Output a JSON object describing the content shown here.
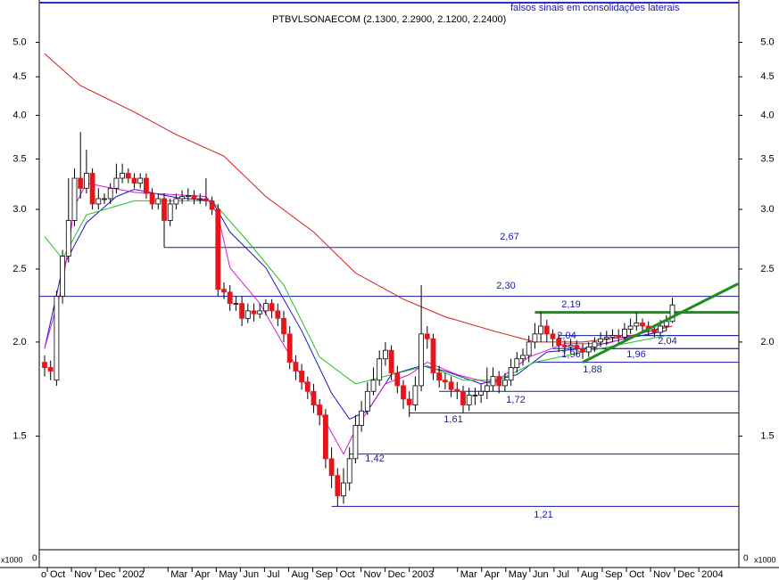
{
  "chart_data": {
    "type": "candlestick",
    "title": "PTBVLSONAECOM (2.1300, 2.2900, 2.1200, 2.2400)",
    "annotation": "falsos sinais em consolidações laterais",
    "log_scale": true,
    "ylim": [
      1.06,
      5.69
    ],
    "yticks": [
      1.5,
      {
        "value": 2,
        "label": "2.0"
      },
      2.5,
      {
        "value": 3,
        "label": "3.0"
      },
      3.5,
      {
        "value": 4,
        "label": "4.0"
      },
      4.5,
      {
        "value": 5,
        "label": "5.0"
      }
    ],
    "categories": [
      "o",
      "Oct",
      "Nov",
      "Dec",
      "2002",
      null,
      "Mar",
      "Apr",
      "May",
      "Jun",
      "Jul",
      "Aug",
      "Sep",
      "Oct",
      "Nov",
      "Dec",
      "2003",
      null,
      "Mar",
      "Apr",
      "May",
      "Jun",
      "Jul",
      "Aug",
      "Sep",
      "Oct",
      "Nov",
      "Dec",
      "2004"
    ],
    "up_color": "#ffffff",
    "down_color": "#e8141c",
    "ohlc": [
      [
        1.88,
        1.92,
        1.8,
        1.85
      ],
      [
        1.85,
        1.89,
        1.78,
        1.83
      ],
      [
        1.78,
        2.34,
        1.75,
        2.3
      ],
      [
        2.3,
        2.65,
        2.25,
        2.6
      ],
      [
        2.6,
        3.3,
        2.55,
        2.9
      ],
      [
        2.9,
        3.4,
        2.85,
        3.3
      ],
      [
        3.3,
        3.8,
        3.1,
        3.2
      ],
      [
        3.2,
        3.6,
        3.15,
        3.35
      ],
      [
        3.35,
        3.4,
        3.0,
        3.05
      ],
      [
        3.05,
        3.2,
        3.0,
        3.1
      ],
      [
        3.1,
        3.15,
        3.05,
        3.1
      ],
      [
        3.1,
        3.25,
        3.05,
        3.2
      ],
      [
        3.2,
        3.45,
        3.15,
        3.3
      ],
      [
        3.3,
        3.45,
        3.25,
        3.35
      ],
      [
        3.35,
        3.4,
        3.25,
        3.3
      ],
      [
        3.3,
        3.35,
        3.2,
        3.25
      ],
      [
        3.25,
        3.35,
        3.2,
        3.3
      ],
      [
        3.3,
        3.35,
        3.1,
        3.15
      ],
      [
        3.15,
        3.2,
        3.0,
        3.05
      ],
      [
        3.05,
        3.15,
        3.0,
        3.1
      ],
      [
        3.1,
        3.15,
        2.67,
        2.9
      ],
      [
        2.9,
        3.1,
        2.85,
        3.05
      ],
      [
        3.05,
        3.15,
        3.0,
        3.1
      ],
      [
        3.1,
        3.18,
        3.05,
        3.12
      ],
      [
        3.12,
        3.2,
        3.08,
        3.13
      ],
      [
        3.13,
        3.18,
        3.05,
        3.1
      ],
      [
        3.1,
        3.15,
        3.05,
        3.1
      ],
      [
        3.1,
        3.3,
        3.03,
        3.08
      ],
      [
        3.08,
        3.12,
        2.95,
        3.0
      ],
      [
        3.0,
        3.05,
        2.3,
        2.35
      ],
      [
        2.35,
        2.4,
        2.28,
        2.33
      ],
      [
        2.33,
        2.38,
        2.2,
        2.25
      ],
      [
        2.25,
        2.3,
        2.2,
        2.25
      ],
      [
        2.25,
        2.3,
        2.1,
        2.15
      ],
      [
        2.15,
        2.25,
        2.12,
        2.2
      ],
      [
        2.2,
        2.25,
        2.13,
        2.18
      ],
      [
        2.18,
        2.25,
        2.15,
        2.2
      ],
      [
        2.2,
        2.28,
        2.17,
        2.25
      ],
      [
        2.25,
        2.28,
        2.15,
        2.2
      ],
      [
        2.2,
        2.25,
        2.1,
        2.15
      ],
      [
        2.15,
        2.2,
        2.0,
        2.05
      ],
      [
        2.05,
        2.1,
        1.84,
        1.88
      ],
      [
        1.88,
        1.92,
        1.78,
        1.83
      ],
      [
        1.83,
        1.87,
        1.73,
        1.77
      ],
      [
        1.77,
        1.8,
        1.68,
        1.72
      ],
      [
        1.72,
        1.76,
        1.61,
        1.65
      ],
      [
        1.65,
        1.68,
        1.55,
        1.6
      ],
      [
        1.6,
        1.63,
        1.36,
        1.4
      ],
      [
        1.4,
        1.45,
        1.28,
        1.33
      ],
      [
        1.33,
        1.36,
        1.21,
        1.25
      ],
      [
        1.25,
        1.36,
        1.22,
        1.3
      ],
      [
        1.3,
        1.45,
        1.27,
        1.4
      ],
      [
        1.4,
        1.6,
        1.38,
        1.55
      ],
      [
        1.55,
        1.67,
        1.52,
        1.62
      ],
      [
        1.62,
        1.77,
        1.6,
        1.72
      ],
      [
        1.72,
        1.85,
        1.7,
        1.78
      ],
      [
        1.78,
        1.95,
        1.75,
        1.9
      ],
      [
        1.9,
        2.0,
        1.86,
        1.95
      ],
      [
        1.95,
        1.98,
        1.78,
        1.82
      ],
      [
        1.82,
        1.86,
        1.71,
        1.75
      ],
      [
        1.75,
        1.78,
        1.63,
        1.68
      ],
      [
        1.68,
        1.72,
        1.59,
        1.65
      ],
      [
        1.65,
        1.8,
        1.62,
        1.75
      ],
      [
        1.75,
        2.38,
        1.72,
        2.05
      ],
      [
        2.05,
        2.1,
        1.96,
        2.02
      ],
      [
        2.02,
        2.05,
        1.78,
        1.82
      ],
      [
        1.82,
        1.86,
        1.74,
        1.78
      ],
      [
        1.78,
        1.82,
        1.73,
        1.77
      ],
      [
        1.77,
        1.8,
        1.69,
        1.73
      ],
      [
        1.73,
        1.77,
        1.68,
        1.72
      ],
      [
        1.72,
        1.75,
        1.61,
        1.65
      ],
      [
        1.65,
        1.74,
        1.62,
        1.7
      ],
      [
        1.7,
        1.74,
        1.65,
        1.7
      ],
      [
        1.7,
        1.76,
        1.66,
        1.72
      ],
      [
        1.72,
        1.85,
        1.68,
        1.75
      ],
      [
        1.75,
        1.85,
        1.72,
        1.8
      ],
      [
        1.8,
        1.83,
        1.71,
        1.75
      ],
      [
        1.75,
        1.82,
        1.72,
        1.78
      ],
      [
        1.78,
        1.9,
        1.75,
        1.85
      ],
      [
        1.85,
        1.94,
        1.82,
        1.9
      ],
      [
        1.9,
        1.96,
        1.86,
        1.92
      ],
      [
        1.92,
        2.04,
        1.88,
        2.0
      ],
      [
        2.0,
        2.12,
        1.96,
        2.05
      ],
      [
        2.05,
        2.19,
        2.0,
        2.1
      ],
      [
        2.1,
        2.14,
        2.0,
        2.05
      ],
      [
        2.05,
        2.08,
        1.97,
        2.02
      ],
      [
        2.02,
        2.05,
        1.94,
        1.98
      ],
      [
        1.98,
        2.01,
        1.93,
        1.97
      ],
      [
        1.97,
        2.02,
        1.93,
        1.98
      ],
      [
        1.98,
        2.01,
        1.92,
        1.96
      ],
      [
        1.96,
        1.99,
        1.9,
        1.94
      ],
      [
        1.94,
        2.0,
        1.91,
        1.97
      ],
      [
        1.97,
        2.03,
        1.94,
        2.0
      ],
      [
        2.0,
        2.06,
        1.97,
        2.02
      ],
      [
        2.02,
        2.07,
        1.98,
        2.03
      ],
      [
        2.03,
        2.08,
        2.0,
        2.04
      ],
      [
        2.04,
        2.08,
        1.99,
        2.03
      ],
      [
        2.03,
        2.12,
        2.0,
        2.08
      ],
      [
        2.08,
        2.15,
        2.05,
        2.1
      ],
      [
        2.1,
        2.19,
        2.07,
        2.12
      ],
      [
        2.12,
        2.15,
        2.06,
        2.1
      ],
      [
        2.1,
        2.13,
        2.04,
        2.08
      ],
      [
        2.08,
        2.11,
        2.03,
        2.06
      ],
      [
        2.06,
        2.14,
        2.04,
        2.1
      ],
      [
        2.1,
        2.17,
        2.07,
        2.13
      ],
      [
        2.13,
        2.29,
        2.12,
        2.24
      ]
    ],
    "series": [
      {
        "color": "#d81818",
        "x": [
          0,
          6,
          15,
          22,
          30,
          37,
          45,
          52,
          60,
          67,
          75,
          82,
          90,
          97,
          105
        ],
        "values": [
          4.83,
          4.38,
          4.04,
          3.77,
          3.53,
          3.12,
          2.8,
          2.47,
          2.28,
          2.16,
          2.07,
          2.0,
          2.0,
          2.03,
          2.1
        ]
      },
      {
        "color": "#1818c8",
        "x": [
          0,
          3,
          7,
          12,
          15,
          22,
          28,
          31,
          37,
          43,
          48,
          51,
          54,
          58,
          63,
          67,
          73,
          79,
          84,
          90,
          97,
          104
        ],
        "values": [
          1.96,
          2.51,
          2.88,
          3.12,
          3.19,
          3.11,
          3.08,
          2.8,
          2.51,
          2.07,
          1.71,
          1.58,
          1.62,
          1.81,
          1.86,
          1.83,
          1.76,
          1.81,
          1.94,
          1.96,
          2.02,
          2.07
        ]
      },
      {
        "color": "#22c022",
        "x": [
          0,
          3,
          7,
          15,
          22,
          28,
          34,
          40,
          46,
          52,
          58,
          64,
          70,
          76,
          82,
          90,
          97,
          104
        ],
        "values": [
          2.76,
          2.58,
          2.95,
          3.08,
          3.08,
          3.08,
          2.72,
          2.38,
          1.91,
          1.76,
          1.81,
          1.86,
          1.78,
          1.78,
          1.88,
          1.94,
          1.99,
          2.04
        ]
      },
      {
        "color": "#d818d8",
        "x": [
          0,
          3,
          5,
          7,
          15,
          27,
          29,
          31,
          36,
          42,
          46,
          50,
          52,
          57,
          61,
          64,
          69,
          75,
          81,
          87,
          94,
          104
        ],
        "values": [
          1.96,
          2.38,
          3.03,
          3.25,
          3.16,
          3.12,
          2.95,
          2.51,
          2.25,
          1.86,
          1.62,
          1.42,
          1.53,
          1.76,
          1.81,
          1.88,
          1.81,
          1.76,
          1.91,
          1.99,
          1.99,
          2.1
        ]
      }
    ],
    "levels": [
      {
        "value": 2.67,
        "label": "2,67",
        "x_start": 20,
        "color": "#1a1aa8"
      },
      {
        "value": 2.3,
        "label": "2,30",
        "x_start": 0,
        "color": "#1a1aa8"
      },
      {
        "value": 2.19,
        "label": "2,19",
        "x_start": 82,
        "color": "#1e8c1e"
      },
      {
        "value": 2.04,
        "label": "2,04",
        "x_start": 86,
        "color": "#1a1aa8"
      },
      {
        "value": 2.04,
        "label": "2,04",
        "x_start": 99,
        "color": "#1a1aa8"
      },
      {
        "value": 1.96,
        "label": "1,96",
        "x_start": 85,
        "color": "#1a1aa8"
      },
      {
        "value": 1.96,
        "label": "1,96",
        "x_start": 90,
        "color": "#1a1aa8"
      },
      {
        "value": 1.88,
        "label": "1,88",
        "x_start": 82,
        "color": "#1a1aa8"
      },
      {
        "value": 1.72,
        "label": "1,72",
        "x_start": 66,
        "color": "#1a1aa8"
      },
      {
        "value": 1.61,
        "label": "1,61",
        "x_start": 61,
        "color": "#1a1aa8"
      },
      {
        "value": 1.42,
        "label": "1,42",
        "x_start": 51,
        "color": "#1a1aa8"
      },
      {
        "value": 1.21,
        "label": "1,21",
        "x_start": 48,
        "color": "#1a1aa8"
      }
    ],
    "trendline": {
      "color": "#1e8c1e",
      "x": [
        90,
        116
      ],
      "values": [
        1.88,
        2.39
      ]
    },
    "indicator": {
      "unit": "x1000",
      "zero": "0"
    }
  }
}
